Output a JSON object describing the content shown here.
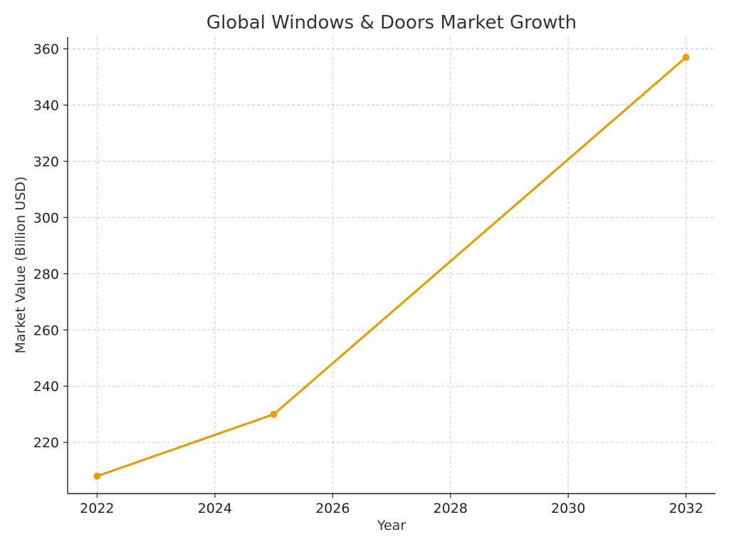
{
  "chart_data": {
    "type": "line",
    "title": "Global Windows & Doors Market Growth",
    "xlabel": "Year",
    "ylabel": "Market Value (Billion USD)",
    "x": [
      2022,
      2025,
      2032
    ],
    "series": [
      {
        "values": [
          208,
          230,
          357
        ],
        "color": "#e39f0b"
      }
    ],
    "xlim": [
      2021.5,
      2032.5
    ],
    "ylim": [
      201.8,
      364.2
    ],
    "xticks": [
      2022,
      2024,
      2026,
      2028,
      2030,
      2032
    ],
    "yticks": [
      220,
      240,
      260,
      280,
      300,
      320,
      340,
      360
    ],
    "grid": true,
    "marker": "circle"
  }
}
